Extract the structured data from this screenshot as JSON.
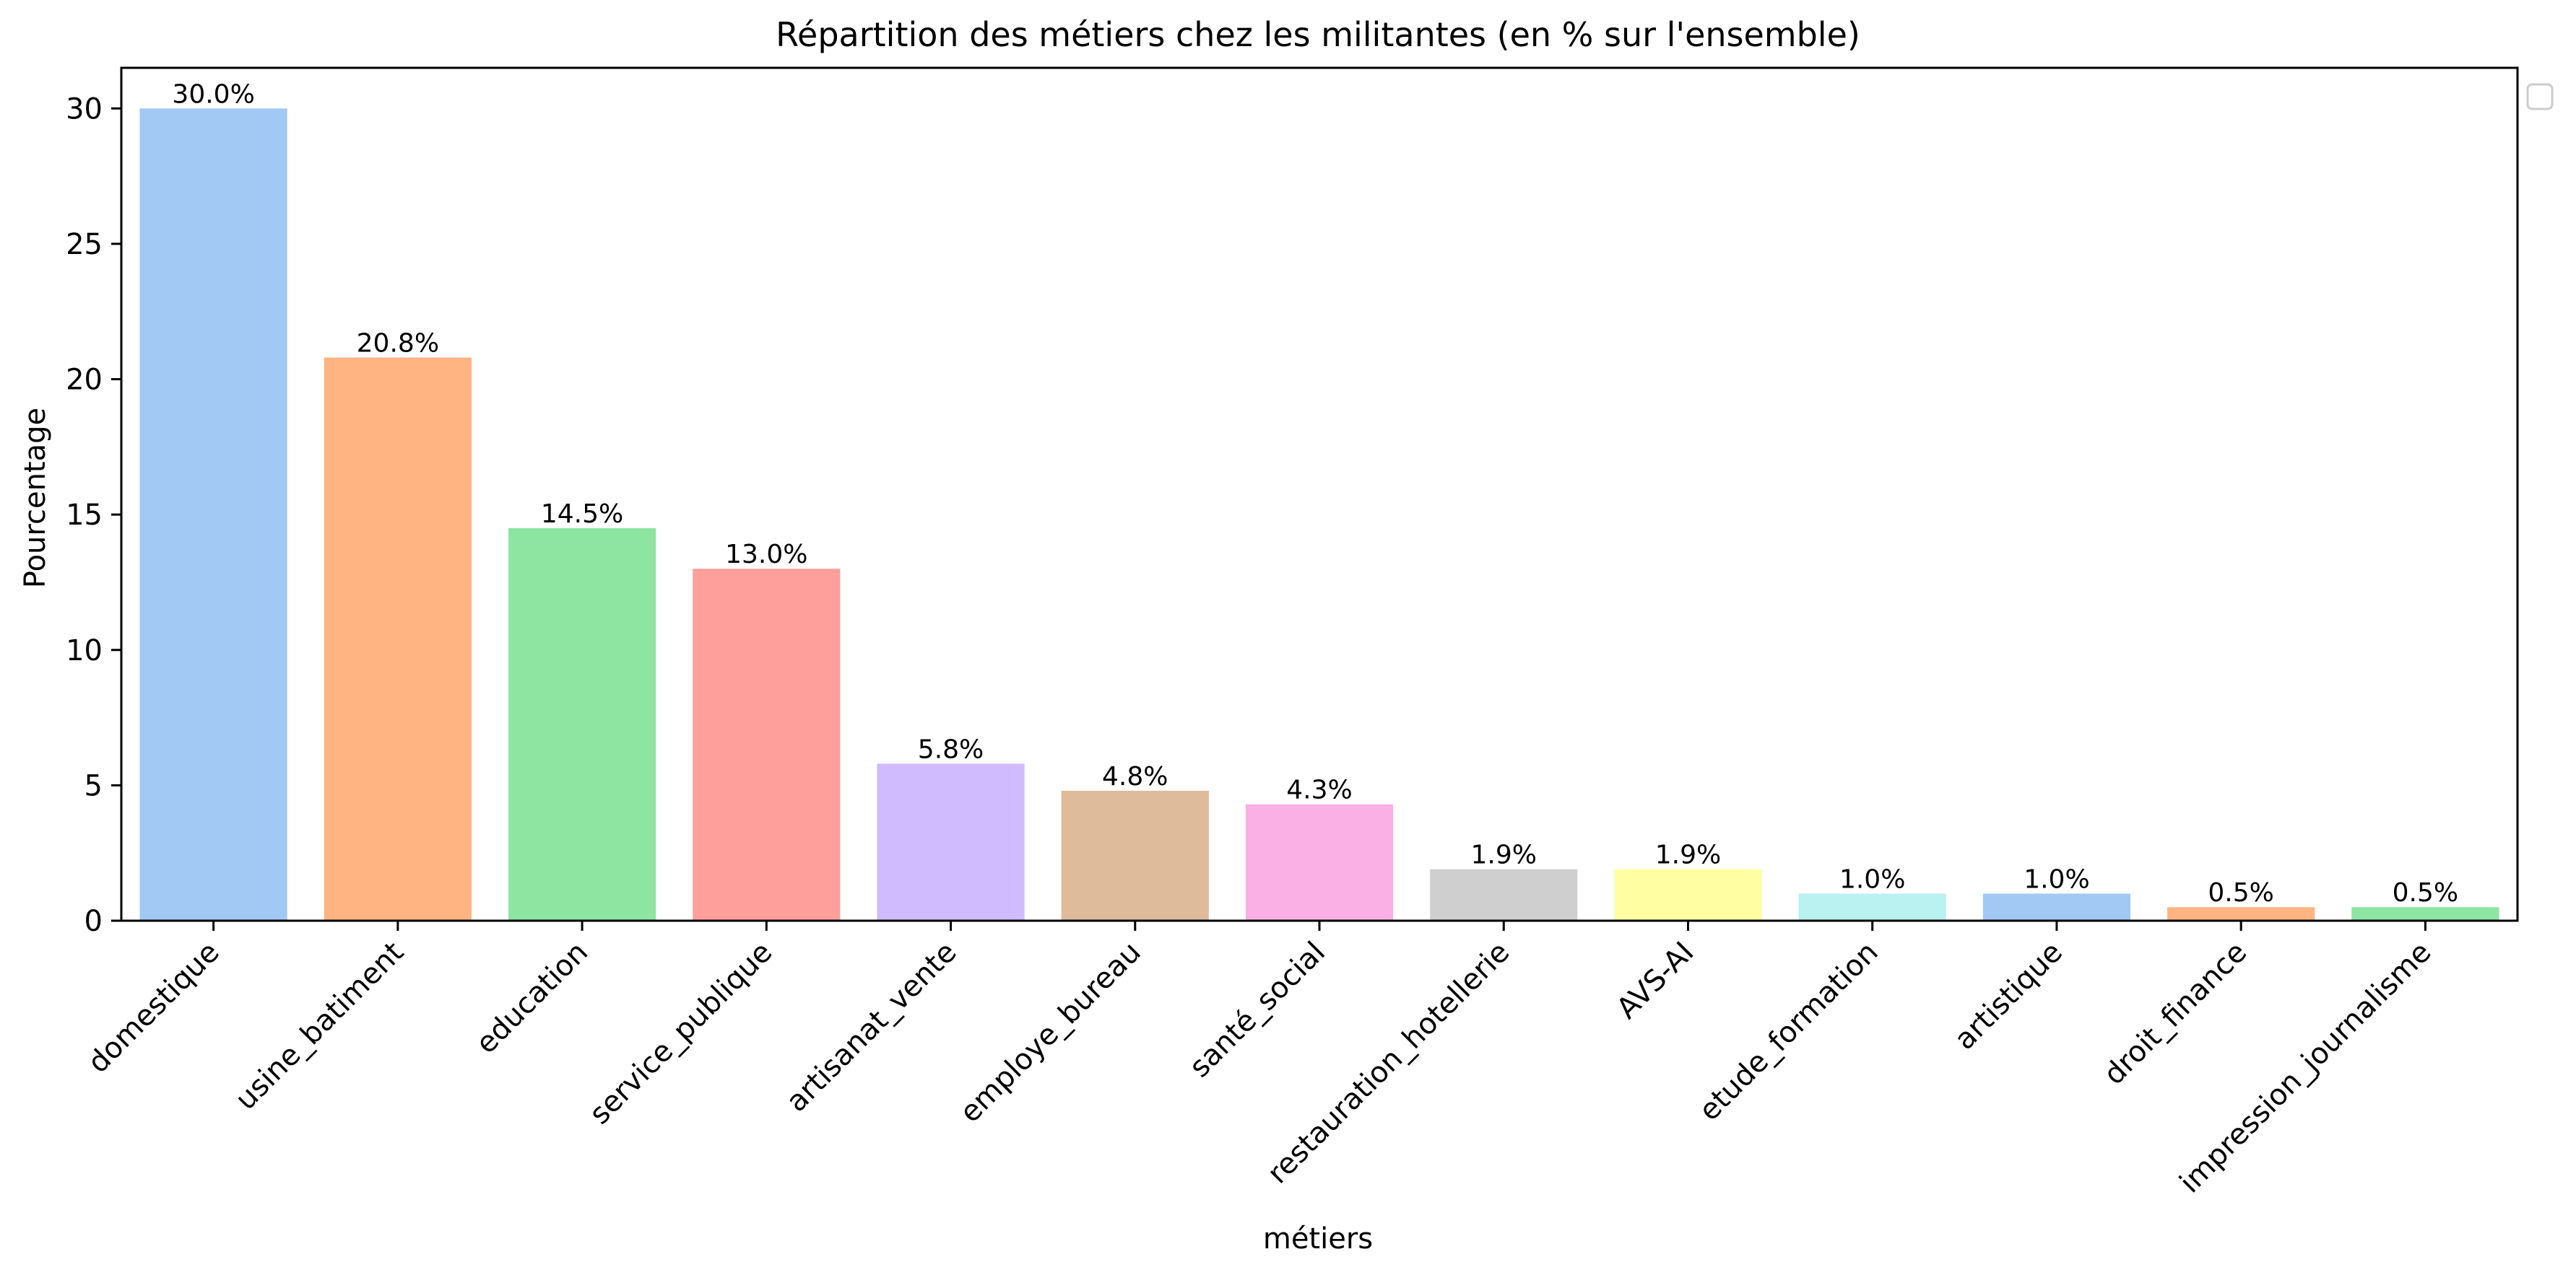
{
  "chart_data": {
    "type": "bar",
    "title": "Répartition des métiers chez les militantes (en % sur l'ensemble)",
    "xlabel": "métiers",
    "ylabel": "Pourcentage",
    "categories": [
      "domestique",
      "usine_batiment",
      "education",
      "service_publique",
      "artisanat_vente",
      "employe_bureau",
      "santé_social",
      "restauration_hotellerie",
      "AVS-AI",
      "etude_formation",
      "artistique",
      "droit_finance",
      "impression_journalisme"
    ],
    "values": [
      30.0,
      20.8,
      14.5,
      13.0,
      5.8,
      4.8,
      4.3,
      1.9,
      1.9,
      1.0,
      1.0,
      0.5,
      0.5
    ],
    "value_labels": [
      "30.0%",
      "20.8%",
      "14.5%",
      "13.0%",
      "5.8%",
      "4.8%",
      "4.3%",
      "1.9%",
      "1.9%",
      "1.0%",
      "1.0%",
      "0.5%",
      "0.5%"
    ],
    "colors": [
      "#a1c9f4",
      "#ffb482",
      "#8de5a1",
      "#ff9f9b",
      "#d0bbff",
      "#debb9b",
      "#fab0e4",
      "#cfcfcf",
      "#fffea3",
      "#b9f2f0",
      "#a1c9f4",
      "#ffb482",
      "#8de5a1"
    ],
    "yticks": [
      0,
      5,
      10,
      15,
      20,
      25,
      30
    ],
    "ylim": [
      0,
      31.5
    ],
    "grid": false,
    "legend": "empty box, top-right outside plot"
  }
}
